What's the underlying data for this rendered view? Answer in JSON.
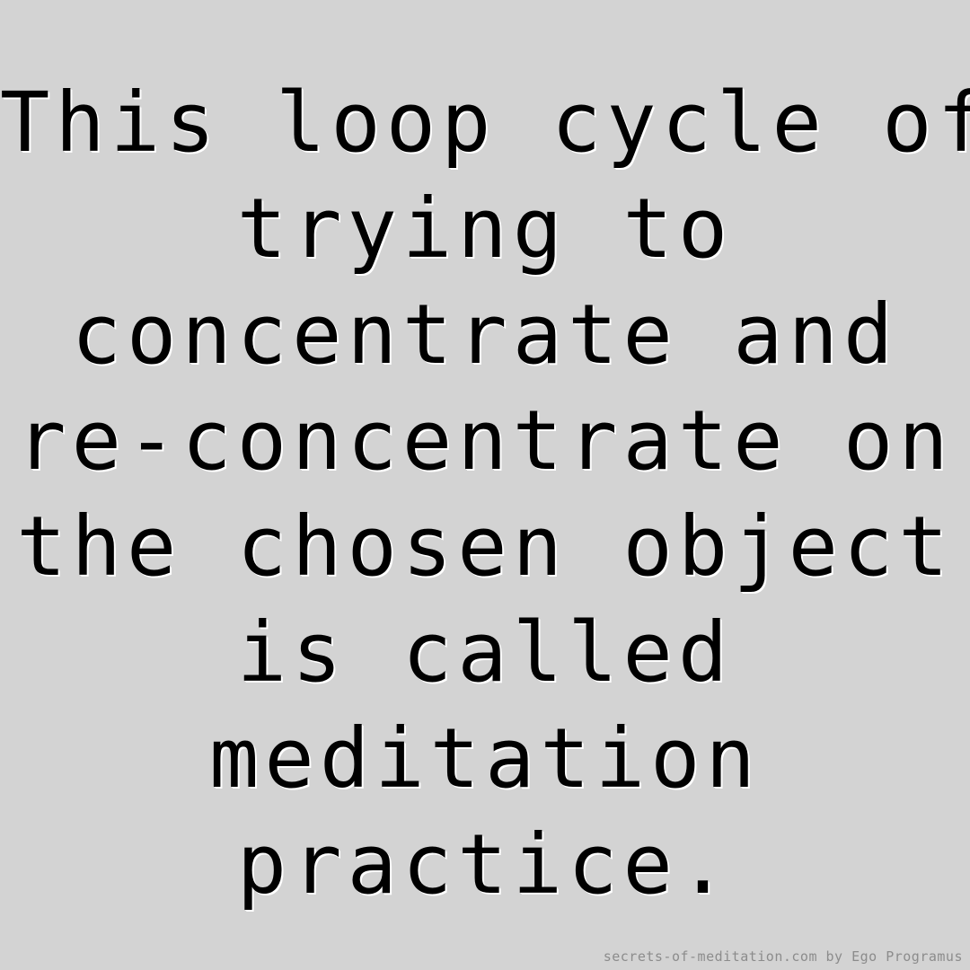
{
  "quote": {
    "lines": [
      "This loop cycle of",
      "trying to",
      "concentrate and",
      "re-concentrate on",
      "the chosen object",
      "is called",
      "meditation",
      "practice."
    ]
  },
  "credit": "secrets-of-meditation.com by Ego Programus",
  "colors": {
    "background": "#d3d3d3",
    "text": "#000000",
    "text_outline": "#ffffff",
    "credit": "#8c8c8c"
  }
}
